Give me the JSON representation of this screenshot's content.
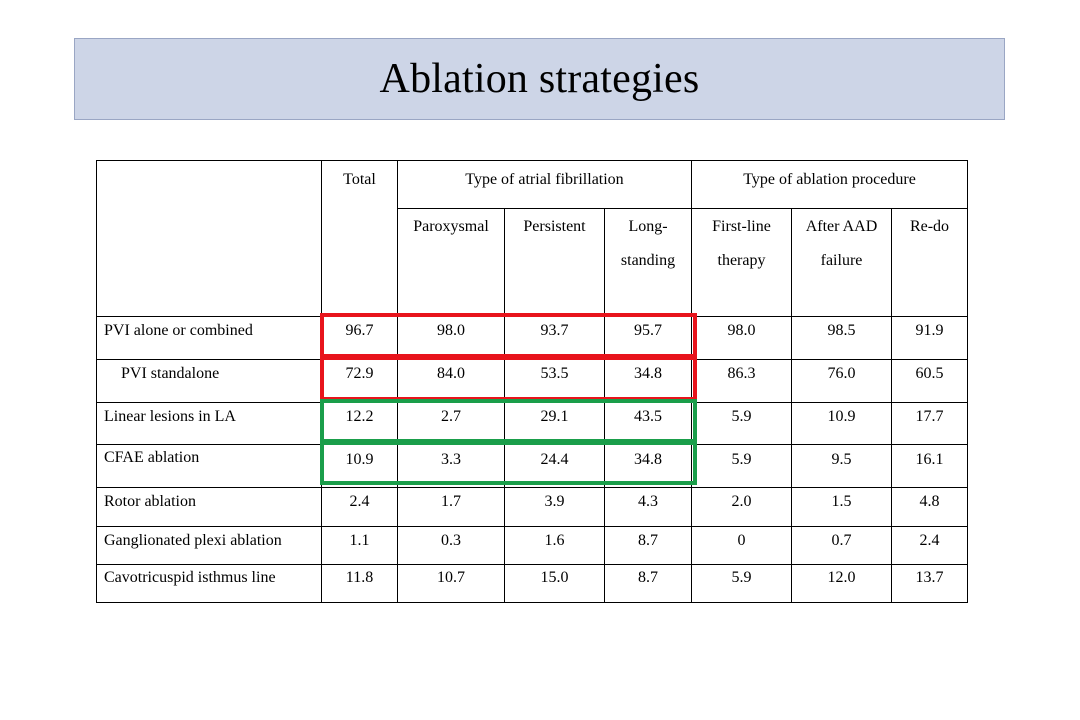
{
  "slide": {
    "title": "Ablation strategies"
  },
  "table": {
    "header": {
      "total": "Total",
      "group_af": "Type of atrial fibrillation",
      "group_proc": "Type of ablation procedure",
      "paroxysmal": "Paroxysmal",
      "persistent": "Persistent",
      "longstanding_1": "Long-",
      "longstanding_2": "standing",
      "firstline_1": "First-line",
      "firstline_2": "therapy",
      "afteraad_1": "After AAD",
      "afteraad_2": "failure",
      "redo": "Re-do"
    },
    "rows": [
      {
        "label": "PVI alone or combined",
        "values": [
          "96.7",
          "98.0",
          "93.7",
          "95.7",
          "98.0",
          "98.5",
          "91.9"
        ]
      },
      {
        "label": "PVI standalone",
        "values": [
          "72.9",
          "84.0",
          "53.5",
          "34.8",
          "86.3",
          "76.0",
          "60.5"
        ]
      },
      {
        "label": "Linear lesions in LA",
        "values": [
          "12.2",
          "2.7",
          "29.1",
          "43.5",
          "5.9",
          "10.9",
          "17.7"
        ]
      },
      {
        "label": "CFAE ablation",
        "values": [
          "10.9",
          "3.3",
          "24.4",
          "34.8",
          "5.9",
          "9.5",
          "16.1"
        ]
      },
      {
        "label": "Rotor ablation",
        "values": [
          "2.4",
          "1.7",
          "3.9",
          "4.3",
          "2.0",
          "1.5",
          "4.8"
        ]
      },
      {
        "label": "Ganglionated plexi ablation",
        "values": [
          "1.1",
          "0.3",
          "1.6",
          "8.7",
          "0",
          "0.7",
          "2.4"
        ]
      },
      {
        "label": "Cavotricuspid isthmus line",
        "values": [
          "11.8",
          "10.7",
          "15.0",
          "8.7",
          "5.9",
          "12.0",
          "13.7"
        ]
      }
    ]
  },
  "highlight_colors": {
    "red": "#e8141c",
    "green": "#1a9e4a"
  }
}
